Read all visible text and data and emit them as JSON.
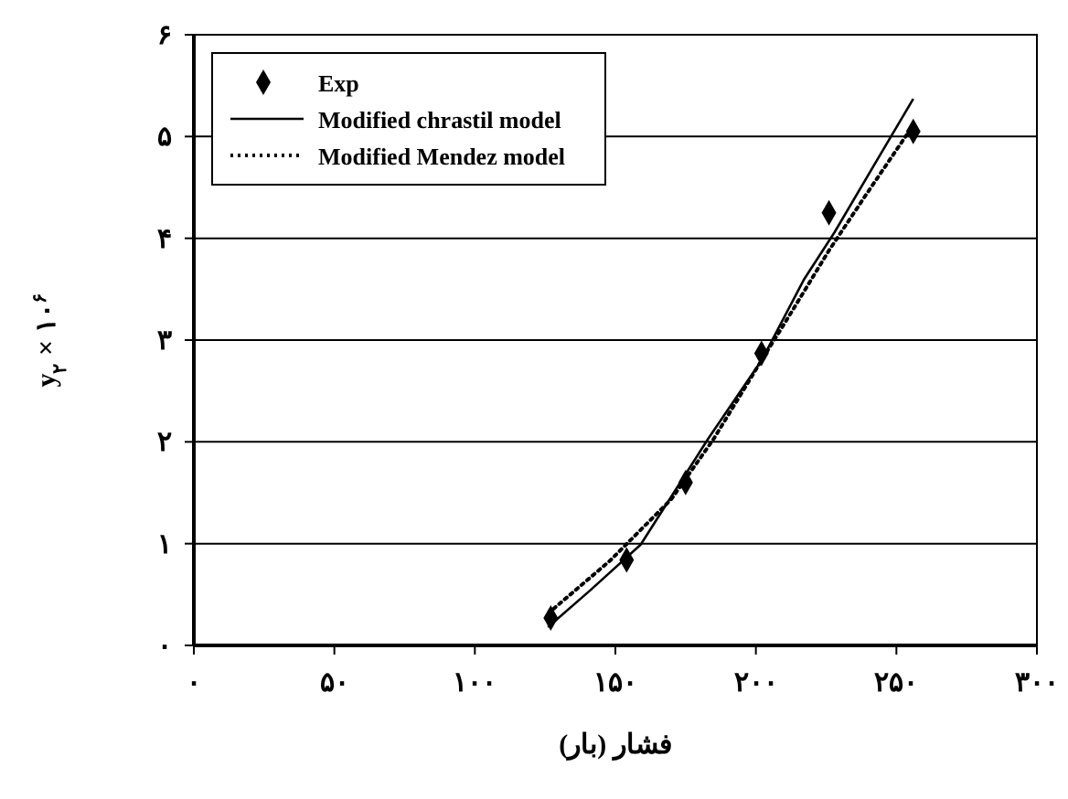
{
  "chart_data": {
    "type": "line",
    "xlabel": "فشار (بار)",
    "ylabel": "y$_{۲}$ × ۱۰$^{۶}$",
    "xlim": [
      0,
      300
    ],
    "ylim": [
      0,
      6
    ],
    "xticks": [
      {
        "value": 0,
        "label": "۰"
      },
      {
        "value": 50,
        "label": "۵۰"
      },
      {
        "value": 100,
        "label": "۱۰۰"
      },
      {
        "value": 150,
        "label": "۱۵۰"
      },
      {
        "value": 200,
        "label": "۲۰۰"
      },
      {
        "value": 250,
        "label": "۲۵۰"
      },
      {
        "value": 300,
        "label": "۳۰۰"
      }
    ],
    "yticks": [
      {
        "value": 0,
        "label": "۰"
      },
      {
        "value": 1,
        "label": "۱"
      },
      {
        "value": 2,
        "label": "۲"
      },
      {
        "value": 3,
        "label": "۳"
      },
      {
        "value": 4,
        "label": "۴"
      },
      {
        "value": 5,
        "label": "۵"
      },
      {
        "value": 6,
        "label": "۶"
      }
    ],
    "grid": "y",
    "legend": "top left",
    "series": [
      {
        "name": "Exp",
        "type": "scatter",
        "marker": "diamond",
        "color": "#000000",
        "x": [
          127,
          154,
          175,
          202,
          226,
          256
        ],
        "values": [
          0.27,
          0.84,
          1.6,
          2.87,
          4.25,
          5.05
        ]
      },
      {
        "name": "Modified chrastil model",
        "type": "line",
        "line_style": "solid",
        "color": "#000000",
        "x": [
          126,
          141,
          159,
          183,
          202,
          217,
          228,
          241,
          256
        ],
        "values": [
          0.18,
          0.54,
          0.99,
          2.03,
          2.8,
          3.59,
          4.06,
          4.67,
          5.37
        ]
      },
      {
        "name": "Modified Mendez model",
        "type": "line",
        "line_style": "dotted",
        "color": "#000000",
        "x": [
          128,
          148,
          170,
          185,
          202,
          213,
          226,
          239,
          254
        ],
        "values": [
          0.36,
          0.83,
          1.44,
          2.03,
          2.8,
          3.29,
          3.88,
          4.42,
          5.03
        ]
      }
    ]
  }
}
